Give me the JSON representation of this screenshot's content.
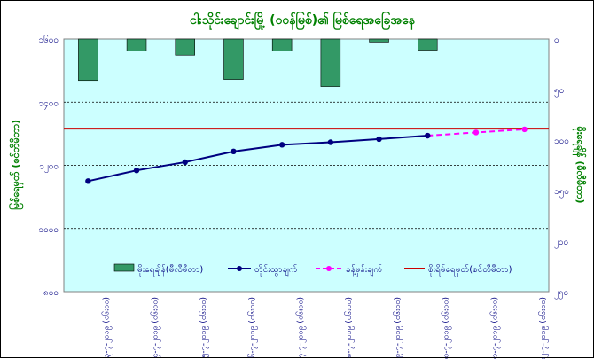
{
  "chart_data": {
    "type": "bar-line",
    "title": "ငါးသိုင်းချောင်းမြို့ (ဝဝန်မြစ်)၏ မြစ်ရေအခြေအနေ",
    "ylabel_left": "မြစ်ရေမှတ် (စင်တီမီတာ)",
    "ylabel_right": "မိုးရေချိန် (မီလီမီတာ)",
    "left_axis": {
      "min": 800,
      "max": 1600,
      "step": 200,
      "tick_labels": [
        "၈၀၀",
        "၁၀၀၀",
        "၁၂၀၀",
        "၁၄၀၀",
        "၁၆၀၀"
      ]
    },
    "right_axis": {
      "min": 0,
      "max": 250,
      "step": 50,
      "reversed": true,
      "tick_labels": [
        "၀",
        "၅၀",
        "၁၀၀",
        "၁၅၀",
        "၂၀၀",
        "၂၅၀"
      ]
    },
    "categories": [
      "၃-၇-၂၀၁၉ (၀၆း၀၀)",
      "၄-၇-၂၀၁၉ (၀၆း၀၀)",
      "၅-၇-၂၀၁၉ (၀၆း၀၀)",
      "၆-၇-၂၀၁၉ (၀၆း၀၀)",
      "၇-၇-၂၀၁၉ (၀၆း၀၀)",
      "၈-၇-၂၀၁၉ (၀၆း၀၀)",
      "၉-၇-၂၀၁၉ (၀၆း၀၀)",
      "၁၀-၇-၂၀၁၉ (၀၆း၀၀)",
      "၁၁-၇-၂၀၁၉ (၀၆း၀၀)",
      "၁၂-၇-၂၀၁၉ (၀၆း၀၀)"
    ],
    "series": [
      {
        "name": "မိုးရေချိန်(မီလီမီတာ)",
        "type": "bar",
        "axis": "right",
        "color": "#339966",
        "values": [
          41,
          12,
          16,
          40,
          12,
          47,
          3,
          11,
          null,
          null
        ]
      },
      {
        "name": "တိုင်းထွာချက်",
        "type": "line",
        "axis": "left",
        "color": "#000080",
        "values": [
          1150,
          1184,
          1210,
          1244,
          1265,
          1273,
          1283,
          1294,
          null,
          null
        ]
      },
      {
        "name": "ခန့်မှန်းချက်",
        "type": "line-dashed",
        "axis": "left",
        "color": "#FF00FF",
        "values": [
          null,
          null,
          null,
          null,
          null,
          null,
          null,
          1294,
          1304,
          1314
        ]
      },
      {
        "name": "စိုးရိမ်ရေမှတ်(စင်တီမီတာ)",
        "type": "hline",
        "axis": "left",
        "color": "#CC0000",
        "value": 1316
      }
    ],
    "grid": "horizontal-dashed",
    "legend_position": "bottom"
  }
}
